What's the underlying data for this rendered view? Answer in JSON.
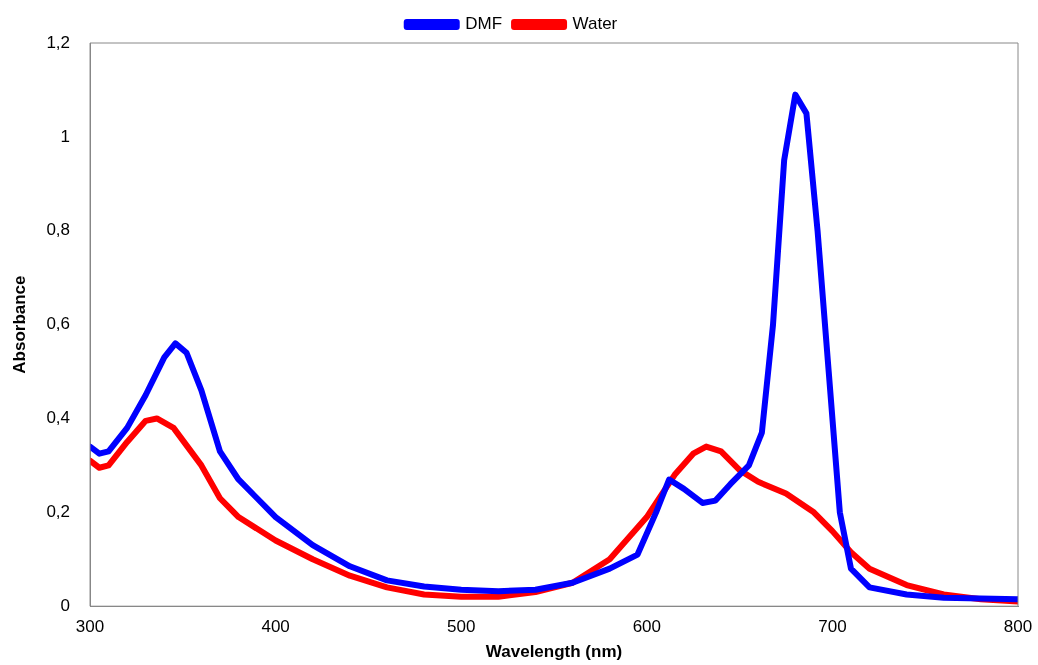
{
  "chart_data": {
    "type": "line",
    "xlabel": "Wavelength (nm)",
    "ylabel": "Absorbance",
    "xlim": [
      300,
      800
    ],
    "xticks": [
      300,
      400,
      500,
      600,
      700,
      800
    ],
    "ylim": [
      0,
      1.2
    ],
    "yticks": [
      0,
      {
        "value": 0.2,
        "label": "0,2"
      },
      {
        "value": 0.4,
        "label": "0,4"
      },
      {
        "value": 0.6,
        "label": "0,6"
      },
      {
        "value": 0.8,
        "label": "0,8"
      },
      1,
      {
        "value": 1.2,
        "label": "1,2"
      }
    ],
    "grid": false,
    "legend": "top",
    "marker": "none",
    "line_style": "solid",
    "series": [
      {
        "name": "DMF",
        "color": "#0000ff",
        "x": [
          300,
          305,
          310,
          320,
          330,
          340,
          346,
          352,
          360,
          370,
          380,
          390,
          400,
          420,
          440,
          460,
          480,
          500,
          520,
          540,
          560,
          580,
          595,
          605,
          612,
          620,
          630,
          637,
          645,
          655,
          662,
          668,
          674,
          680,
          686,
          692,
          698,
          704,
          710,
          720,
          740,
          760,
          800
        ],
        "values": [
          0.34,
          0.325,
          0.33,
          0.38,
          0.45,
          0.53,
          0.56,
          0.54,
          0.46,
          0.33,
          0.27,
          0.23,
          0.19,
          0.13,
          0.085,
          0.055,
          0.042,
          0.035,
          0.032,
          0.035,
          0.05,
          0.08,
          0.11,
          0.2,
          0.27,
          0.25,
          0.22,
          0.225,
          0.26,
          0.3,
          0.37,
          0.6,
          0.95,
          1.09,
          1.05,
          0.8,
          0.5,
          0.2,
          0.08,
          0.04,
          0.025,
          0.018,
          0.015
        ]
      },
      {
        "name": "Water",
        "color": "#ff0000",
        "x": [
          300,
          305,
          310,
          320,
          330,
          336,
          345,
          360,
          370,
          380,
          400,
          420,
          440,
          460,
          480,
          500,
          520,
          540,
          560,
          580,
          600,
          615,
          625,
          632,
          640,
          650,
          660,
          675,
          690,
          700,
          710,
          720,
          740,
          760,
          780,
          800
        ],
        "values": [
          0.31,
          0.295,
          0.3,
          0.35,
          0.395,
          0.4,
          0.38,
          0.3,
          0.23,
          0.19,
          0.14,
          0.1,
          0.065,
          0.04,
          0.025,
          0.02,
          0.02,
          0.03,
          0.05,
          0.1,
          0.19,
          0.28,
          0.325,
          0.34,
          0.33,
          0.29,
          0.265,
          0.24,
          0.2,
          0.16,
          0.115,
          0.08,
          0.045,
          0.025,
          0.015,
          0.01
        ]
      }
    ]
  }
}
